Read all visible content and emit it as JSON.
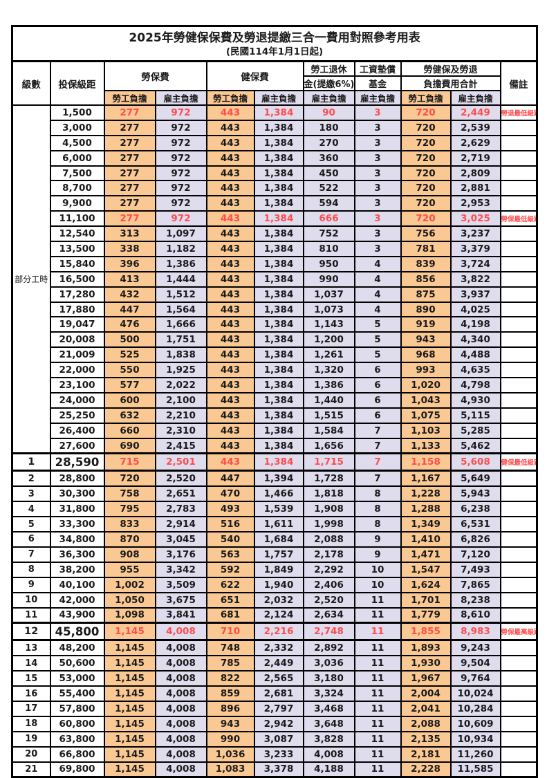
{
  "title": "2025年勞健保保費及勞退提繳三合一費用對照參考用表",
  "subtitle": "(民國114年1月1日起)",
  "header": {
    "level": "級數",
    "bracket": "投保級距",
    "labor_insurance": "勞保費",
    "health_insurance": "健保費",
    "pension_line1": "勞工退休",
    "pension_line2": "金(提繳6%)",
    "wage_fund_line1": "工資墊償",
    "wage_fund_line2": "基金",
    "total_line1": "勞健保及勞退",
    "total_line2": "負擔費用合計",
    "note": "備註",
    "employee": "勞工負擔",
    "employer": "雇主負擔"
  },
  "part_time": {
    "label": "部分工時",
    "span": 23
  },
  "colors": {
    "employee_bg": "#fac893",
    "employer_bg": "#dfdcee",
    "highlight_red": "#ff4c4c",
    "border": "#000000"
  },
  "rows": [
    {
      "level": "",
      "bracket": "1,500",
      "values": [
        "277",
        "972",
        "443",
        "1,384",
        "90",
        "3",
        "720",
        "2,449"
      ],
      "note": "勞退最低級距",
      "red": true,
      "big": false
    },
    {
      "level": "",
      "bracket": "3,000",
      "values": [
        "277",
        "972",
        "443",
        "1,384",
        "180",
        "3",
        "720",
        "2,539"
      ],
      "note": "",
      "red": false,
      "big": false
    },
    {
      "level": "",
      "bracket": "4,500",
      "values": [
        "277",
        "972",
        "443",
        "1,384",
        "270",
        "3",
        "720",
        "2,629"
      ],
      "note": "",
      "red": false,
      "big": false
    },
    {
      "level": "",
      "bracket": "6,000",
      "values": [
        "277",
        "972",
        "443",
        "1,384",
        "360",
        "3",
        "720",
        "2,719"
      ],
      "note": "",
      "red": false,
      "big": false
    },
    {
      "level": "",
      "bracket": "7,500",
      "values": [
        "277",
        "972",
        "443",
        "1,384",
        "450",
        "3",
        "720",
        "2,809"
      ],
      "note": "",
      "red": false,
      "big": false
    },
    {
      "level": "",
      "bracket": "8,700",
      "values": [
        "277",
        "972",
        "443",
        "1,384",
        "522",
        "3",
        "720",
        "2,881"
      ],
      "note": "",
      "red": false,
      "big": false
    },
    {
      "level": "",
      "bracket": "9,900",
      "values": [
        "277",
        "972",
        "443",
        "1,384",
        "594",
        "3",
        "720",
        "2,953"
      ],
      "note": "",
      "red": false,
      "big": false
    },
    {
      "level": "",
      "bracket": "11,100",
      "values": [
        "277",
        "972",
        "443",
        "1,384",
        "666",
        "3",
        "720",
        "3,025"
      ],
      "note": "勞保最低級距",
      "red": true,
      "big": false
    },
    {
      "level": "",
      "bracket": "12,540",
      "values": [
        "313",
        "1,097",
        "443",
        "1,384",
        "752",
        "3",
        "756",
        "3,237"
      ],
      "note": "",
      "red": false,
      "big": false
    },
    {
      "level": "",
      "bracket": "13,500",
      "values": [
        "338",
        "1,182",
        "443",
        "1,384",
        "810",
        "3",
        "781",
        "3,379"
      ],
      "note": "",
      "red": false,
      "big": false
    },
    {
      "level": "",
      "bracket": "15,840",
      "values": [
        "396",
        "1,386",
        "443",
        "1,384",
        "950",
        "4",
        "839",
        "3,724"
      ],
      "note": "",
      "red": false,
      "big": false
    },
    {
      "level": "",
      "bracket": "16,500",
      "values": [
        "413",
        "1,444",
        "443",
        "1,384",
        "990",
        "4",
        "856",
        "3,822"
      ],
      "note": "",
      "red": false,
      "big": false
    },
    {
      "level": "",
      "bracket": "17,280",
      "values": [
        "432",
        "1,512",
        "443",
        "1,384",
        "1,037",
        "4",
        "875",
        "3,937"
      ],
      "note": "",
      "red": false,
      "big": false
    },
    {
      "level": "",
      "bracket": "17,880",
      "values": [
        "447",
        "1,564",
        "443",
        "1,384",
        "1,073",
        "4",
        "890",
        "4,025"
      ],
      "note": "",
      "red": false,
      "big": false
    },
    {
      "level": "",
      "bracket": "19,047",
      "values": [
        "476",
        "1,666",
        "443",
        "1,384",
        "1,143",
        "5",
        "919",
        "4,198"
      ],
      "note": "",
      "red": false,
      "big": false
    },
    {
      "level": "",
      "bracket": "20,008",
      "values": [
        "500",
        "1,751",
        "443",
        "1,384",
        "1,200",
        "5",
        "943",
        "4,340"
      ],
      "note": "",
      "red": false,
      "big": false
    },
    {
      "level": "",
      "bracket": "21,009",
      "values": [
        "525",
        "1,838",
        "443",
        "1,384",
        "1,261",
        "5",
        "968",
        "4,488"
      ],
      "note": "",
      "red": false,
      "big": false
    },
    {
      "level": "",
      "bracket": "22,000",
      "values": [
        "550",
        "1,925",
        "443",
        "1,384",
        "1,320",
        "6",
        "993",
        "4,635"
      ],
      "note": "",
      "red": false,
      "big": false
    },
    {
      "level": "",
      "bracket": "23,100",
      "values": [
        "577",
        "2,022",
        "443",
        "1,384",
        "1,386",
        "6",
        "1,020",
        "4,798"
      ],
      "note": "",
      "red": false,
      "big": false
    },
    {
      "level": "",
      "bracket": "24,000",
      "values": [
        "600",
        "2,100",
        "443",
        "1,384",
        "1,440",
        "6",
        "1,043",
        "4,930"
      ],
      "note": "",
      "red": false,
      "big": false
    },
    {
      "level": "",
      "bracket": "25,250",
      "values": [
        "632",
        "2,210",
        "443",
        "1,384",
        "1,515",
        "6",
        "1,075",
        "5,115"
      ],
      "note": "",
      "red": false,
      "big": false
    },
    {
      "level": "",
      "bracket": "26,400",
      "values": [
        "660",
        "2,310",
        "443",
        "1,384",
        "1,584",
        "7",
        "1,103",
        "5,285"
      ],
      "note": "",
      "red": false,
      "big": false
    },
    {
      "level": "",
      "bracket": "27,600",
      "values": [
        "690",
        "2,415",
        "443",
        "1,384",
        "1,656",
        "7",
        "1,133",
        "5,462"
      ],
      "note": "",
      "red": false,
      "big": false
    },
    {
      "level": "1",
      "bracket": "28,590",
      "values": [
        "715",
        "2,501",
        "443",
        "1,384",
        "1,715",
        "7",
        "1,158",
        "5,608"
      ],
      "note": "健保最低級距",
      "red": true,
      "big": true
    },
    {
      "level": "2",
      "bracket": "28,800",
      "values": [
        "720",
        "2,520",
        "447",
        "1,394",
        "1,728",
        "7",
        "1,167",
        "5,649"
      ],
      "note": "",
      "red": false,
      "big": false
    },
    {
      "level": "3",
      "bracket": "30,300",
      "values": [
        "758",
        "2,651",
        "470",
        "1,466",
        "1,818",
        "8",
        "1,228",
        "5,943"
      ],
      "note": "",
      "red": false,
      "big": false
    },
    {
      "level": "4",
      "bracket": "31,800",
      "values": [
        "795",
        "2,783",
        "493",
        "1,539",
        "1,908",
        "8",
        "1,288",
        "6,238"
      ],
      "note": "",
      "red": false,
      "big": false
    },
    {
      "level": "5",
      "bracket": "33,300",
      "values": [
        "833",
        "2,914",
        "516",
        "1,611",
        "1,998",
        "8",
        "1,349",
        "6,531"
      ],
      "note": "",
      "red": false,
      "big": false
    },
    {
      "level": "6",
      "bracket": "34,800",
      "values": [
        "870",
        "3,045",
        "540",
        "1,684",
        "2,088",
        "9",
        "1,410",
        "6,826"
      ],
      "note": "",
      "red": false,
      "big": false
    },
    {
      "level": "7",
      "bracket": "36,300",
      "values": [
        "908",
        "3,176",
        "563",
        "1,757",
        "2,178",
        "9",
        "1,471",
        "7,120"
      ],
      "note": "",
      "red": false,
      "big": false
    },
    {
      "level": "8",
      "bracket": "38,200",
      "values": [
        "955",
        "3,342",
        "592",
        "1,849",
        "2,292",
        "10",
        "1,547",
        "7,493"
      ],
      "note": "",
      "red": false,
      "big": false
    },
    {
      "level": "9",
      "bracket": "40,100",
      "values": [
        "1,002",
        "3,509",
        "622",
        "1,940",
        "2,406",
        "10",
        "1,624",
        "7,865"
      ],
      "note": "",
      "red": false,
      "big": false
    },
    {
      "level": "10",
      "bracket": "42,000",
      "values": [
        "1,050",
        "3,675",
        "651",
        "2,032",
        "2,520",
        "11",
        "1,701",
        "8,238"
      ],
      "note": "",
      "red": false,
      "big": false
    },
    {
      "level": "11",
      "bracket": "43,900",
      "values": [
        "1,098",
        "3,841",
        "681",
        "2,124",
        "2,634",
        "11",
        "1,779",
        "8,610"
      ],
      "note": "",
      "red": false,
      "big": false
    },
    {
      "level": "12",
      "bracket": "45,800",
      "values": [
        "1,145",
        "4,008",
        "710",
        "2,216",
        "2,748",
        "11",
        "1,855",
        "8,983"
      ],
      "note": "勞保最高級距",
      "red": true,
      "big": true
    },
    {
      "level": "13",
      "bracket": "48,200",
      "values": [
        "1,145",
        "4,008",
        "748",
        "2,332",
        "2,892",
        "11",
        "1,893",
        "9,243"
      ],
      "note": "",
      "red": false,
      "big": false
    },
    {
      "level": "14",
      "bracket": "50,600",
      "values": [
        "1,145",
        "4,008",
        "785",
        "2,449",
        "3,036",
        "11",
        "1,930",
        "9,504"
      ],
      "note": "",
      "red": false,
      "big": false
    },
    {
      "level": "15",
      "bracket": "53,000",
      "values": [
        "1,145",
        "4,008",
        "822",
        "2,565",
        "3,180",
        "11",
        "1,967",
        "9,764"
      ],
      "note": "",
      "red": false,
      "big": false
    },
    {
      "level": "16",
      "bracket": "55,400",
      "values": [
        "1,145",
        "4,008",
        "859",
        "2,681",
        "3,324",
        "11",
        "2,004",
        "10,024"
      ],
      "note": "",
      "red": false,
      "big": false
    },
    {
      "level": "17",
      "bracket": "57,800",
      "values": [
        "1,145",
        "4,008",
        "896",
        "2,797",
        "3,468",
        "11",
        "2,041",
        "10,284"
      ],
      "note": "",
      "red": false,
      "big": false
    },
    {
      "level": "18",
      "bracket": "60,800",
      "values": [
        "1,145",
        "4,008",
        "943",
        "2,942",
        "3,648",
        "11",
        "2,088",
        "10,609"
      ],
      "note": "",
      "red": false,
      "big": false
    },
    {
      "level": "19",
      "bracket": "63,800",
      "values": [
        "1,145",
        "4,008",
        "990",
        "3,087",
        "3,828",
        "11",
        "2,135",
        "10,934"
      ],
      "note": "",
      "red": false,
      "big": false
    },
    {
      "level": "20",
      "bracket": "66,800",
      "values": [
        "1,145",
        "4,008",
        "1,036",
        "3,233",
        "4,008",
        "11",
        "2,181",
        "11,260"
      ],
      "note": "",
      "red": false,
      "big": false
    },
    {
      "level": "21",
      "bracket": "69,800",
      "values": [
        "1,145",
        "4,008",
        "1,083",
        "3,378",
        "4,188",
        "11",
        "2,228",
        "11,585"
      ],
      "note": "",
      "red": false,
      "big": false
    }
  ]
}
